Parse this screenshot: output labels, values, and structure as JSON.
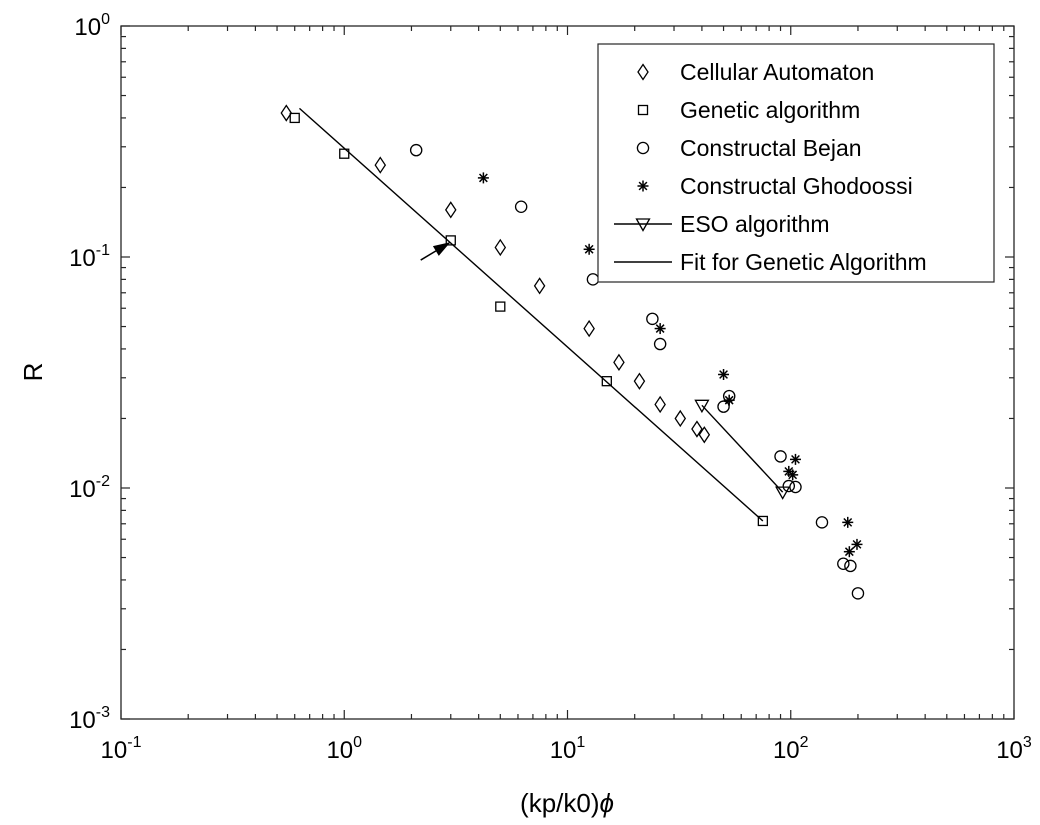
{
  "chart_data": {
    "type": "scatter",
    "title": "",
    "xlabel": "(kp/k0)",
    "xlabel_symbol": "ϕ",
    "ylabel": "R",
    "xscale": "log",
    "yscale": "log",
    "xlim": [
      0.1,
      1000
    ],
    "ylim": [
      0.001,
      1
    ],
    "grid": false,
    "legend_position": "top-right",
    "x_ticks": [
      {
        "value": 0.1,
        "base": "10",
        "exp": "-1"
      },
      {
        "value": 1,
        "base": "10",
        "exp": "0"
      },
      {
        "value": 10,
        "base": "10",
        "exp": "1"
      },
      {
        "value": 100,
        "base": "10",
        "exp": "2"
      },
      {
        "value": 1000,
        "base": "10",
        "exp": "3"
      }
    ],
    "y_ticks": [
      {
        "value": 0.001,
        "base": "10",
        "exp": "-3"
      },
      {
        "value": 0.01,
        "base": "10",
        "exp": "-2"
      },
      {
        "value": 0.1,
        "base": "10",
        "exp": "-1"
      },
      {
        "value": 1,
        "base": "10",
        "exp": "0"
      }
    ],
    "series": [
      {
        "name": "Cellular Automaton",
        "marker": "diamond",
        "line": false,
        "points": [
          [
            0.55,
            0.42
          ],
          [
            1.45,
            0.25
          ],
          [
            3.0,
            0.16
          ],
          [
            5.0,
            0.11
          ],
          [
            7.5,
            0.075
          ],
          [
            12.5,
            0.049
          ],
          [
            17.0,
            0.035
          ],
          [
            21.0,
            0.029
          ],
          [
            26.0,
            0.023
          ],
          [
            32.0,
            0.02
          ],
          [
            38.0,
            0.018
          ],
          [
            41.0,
            0.017
          ]
        ]
      },
      {
        "name": "Genetic algorithm",
        "marker": "square",
        "line": false,
        "points": [
          [
            0.6,
            0.4
          ],
          [
            1.0,
            0.28
          ],
          [
            3.0,
            0.118
          ],
          [
            5.0,
            0.061
          ],
          [
            15.0,
            0.029
          ],
          [
            75.0,
            0.0072
          ]
        ]
      },
      {
        "name": "Constructal Bejan",
        "marker": "circle",
        "line": false,
        "points": [
          [
            2.1,
            0.29
          ],
          [
            6.2,
            0.165
          ],
          [
            13.0,
            0.08
          ],
          [
            24.0,
            0.054
          ],
          [
            26.0,
            0.042
          ],
          [
            50.0,
            0.0225
          ],
          [
            53.0,
            0.025
          ],
          [
            90.0,
            0.0137
          ],
          [
            98.0,
            0.0102
          ],
          [
            105.0,
            0.0101
          ],
          [
            138.0,
            0.0071
          ],
          [
            172.0,
            0.0047
          ],
          [
            185.0,
            0.0046
          ],
          [
            200.0,
            0.0035
          ]
        ]
      },
      {
        "name": "Constructal Ghodoossi",
        "marker": "asterisk",
        "line": false,
        "points": [
          [
            4.2,
            0.22
          ],
          [
            12.5,
            0.108
          ],
          [
            26.0,
            0.049
          ],
          [
            50.0,
            0.031
          ],
          [
            53.0,
            0.024
          ],
          [
            98.0,
            0.0118
          ],
          [
            102.0,
            0.0114
          ],
          [
            105.0,
            0.0133
          ],
          [
            180.0,
            0.0071
          ],
          [
            183.0,
            0.0053
          ],
          [
            198.0,
            0.0057
          ]
        ]
      },
      {
        "name": "ESO algorithm",
        "marker": "triangle-down",
        "line": true,
        "points": [
          [
            40.0,
            0.0228
          ],
          [
            92.0,
            0.0096
          ]
        ]
      },
      {
        "name": "Fit for Genetic Algorithm",
        "marker": "none",
        "line": true,
        "points": [
          [
            0.63,
            0.44
          ],
          [
            75.0,
            0.0072
          ]
        ]
      }
    ],
    "annotations": [
      {
        "type": "arrow",
        "from": [
          2.2,
          0.097
        ],
        "to": [
          2.95,
          0.115
        ]
      }
    ]
  }
}
